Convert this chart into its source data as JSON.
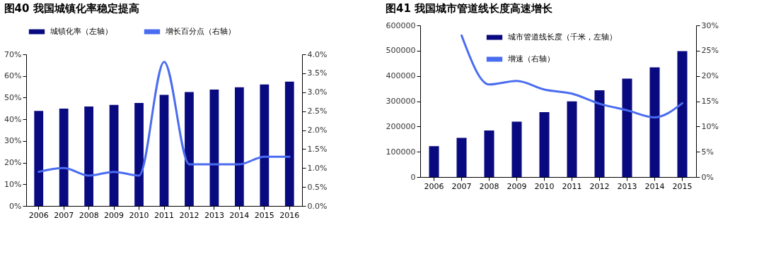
{
  "chart_data": [
    {
      "type": "bar",
      "title": "图40 我国城镇化率稳定提高",
      "categories": [
        "2006",
        "2007",
        "2008",
        "2009",
        "2010",
        "2011",
        "2012",
        "2013",
        "2014",
        "2015",
        "2016"
      ],
      "series": [
        {
          "name": "城镇化率（左轴）",
          "type": "bar",
          "color": "#0a0a80",
          "values": [
            43.9,
            44.9,
            45.9,
            46.6,
            47.5,
            51.3,
            52.6,
            53.7,
            54.8,
            56.1,
            57.4
          ]
        },
        {
          "name": "增长百分点（右轴）",
          "type": "line",
          "axis": "y2",
          "color": "#4a6cf0",
          "values": [
            0.9,
            1.0,
            0.8,
            0.9,
            0.8,
            3.8,
            1.1,
            1.1,
            1.1,
            1.3,
            1.3
          ]
        }
      ],
      "ylim": [
        0,
        70
      ],
      "yticks": [
        {
          "value": 0,
          "label": "0%"
        },
        {
          "value": 10,
          "label": "10%"
        },
        {
          "value": 20,
          "label": "20%"
        },
        {
          "value": 30,
          "label": "30%"
        },
        {
          "value": 40,
          "label": "40%"
        },
        {
          "value": 50,
          "label": "50%"
        },
        {
          "value": 60,
          "label": "60%"
        },
        {
          "value": 70,
          "label": "70%"
        }
      ],
      "y2lim": [
        0,
        4
      ],
      "y2ticks": [
        {
          "value": 0,
          "label": "0.0%"
        },
        {
          "value": 0.5,
          "label": "0.5%"
        },
        {
          "value": 1,
          "label": "1.0%"
        },
        {
          "value": 1.5,
          "label": "1.5%"
        },
        {
          "value": 2,
          "label": "2.0%"
        },
        {
          "value": 2.5,
          "label": "2.5%"
        },
        {
          "value": 3,
          "label": "3.0%"
        },
        {
          "value": 3.5,
          "label": "3.5%"
        },
        {
          "value": 4,
          "label": "4.0%"
        }
      ],
      "legend": "top"
    },
    {
      "type": "bar",
      "title": "图41 我国城市管道线长度高速增长",
      "categories": [
        "2006",
        "2007",
        "2008",
        "2009",
        "2010",
        "2011",
        "2012",
        "2013",
        "2014",
        "2015"
      ],
      "series": [
        {
          "name": "城市管道线长度（千米，左轴）",
          "type": "bar",
          "color": "#0a0a80",
          "values": [
            122000,
            155000,
            184000,
            219000,
            257000,
            299000,
            343000,
            389000,
            434000,
            498000
          ]
        },
        {
          "name": "增速（右轴）",
          "type": "line",
          "axis": "y2",
          "color": "#4a6cf0",
          "values": [
            null,
            28,
            18.3,
            19,
            17.3,
            16.5,
            14.5,
            13.2,
            11.8,
            14.6
          ]
        }
      ],
      "ylim": [
        0,
        600000
      ],
      "yticks": [
        0,
        100000,
        200000,
        300000,
        400000,
        500000,
        600000
      ],
      "y2lim": [
        0,
        30
      ],
      "y2ticks": [
        {
          "value": 0,
          "label": "0%"
        },
        {
          "value": 5,
          "label": "5%"
        },
        {
          "value": 10,
          "label": "10%"
        },
        {
          "value": 15,
          "label": "15%"
        },
        {
          "value": 20,
          "label": "20%"
        },
        {
          "value": 25,
          "label": "25%"
        },
        {
          "value": 30,
          "label": "30%"
        }
      ],
      "legend": "top left"
    }
  ]
}
